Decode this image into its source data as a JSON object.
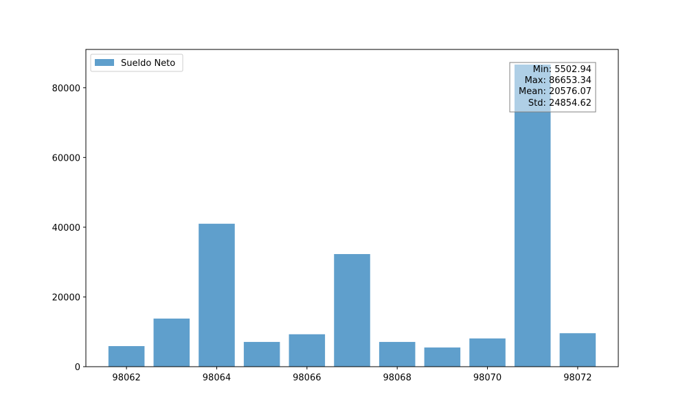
{
  "chart_data": {
    "type": "bar",
    "x": [
      98062,
      98063,
      98064,
      98065,
      98066,
      98067,
      98068,
      98069,
      98070,
      98071,
      98072
    ],
    "series": [
      {
        "name": "Sueldo Neto",
        "color": "#5f9fcc",
        "values": [
          5900,
          13800,
          41000,
          7100,
          9300,
          32300,
          7100,
          5502.94,
          8100,
          86653.34,
          9600
        ]
      }
    ],
    "x_ticks": [
      "98062",
      "98064",
      "98066",
      "98068",
      "98070",
      "98072"
    ],
    "y_ticks": [
      "0",
      "20000",
      "40000",
      "60000",
      "80000"
    ],
    "xlim": [
      98061.1,
      98072.9
    ],
    "ylim": [
      0,
      90986
    ],
    "legend": {
      "position": "top-left",
      "label": "Sueldo Neto"
    },
    "stats_box": {
      "position": "top-right",
      "lines": [
        "Min: 5502.94",
        "Max: 86653.34",
        "Mean: 20576.07",
        "Std: 24854.62"
      ]
    },
    "grid": false,
    "title": "",
    "xlabel": "",
    "ylabel": ""
  }
}
